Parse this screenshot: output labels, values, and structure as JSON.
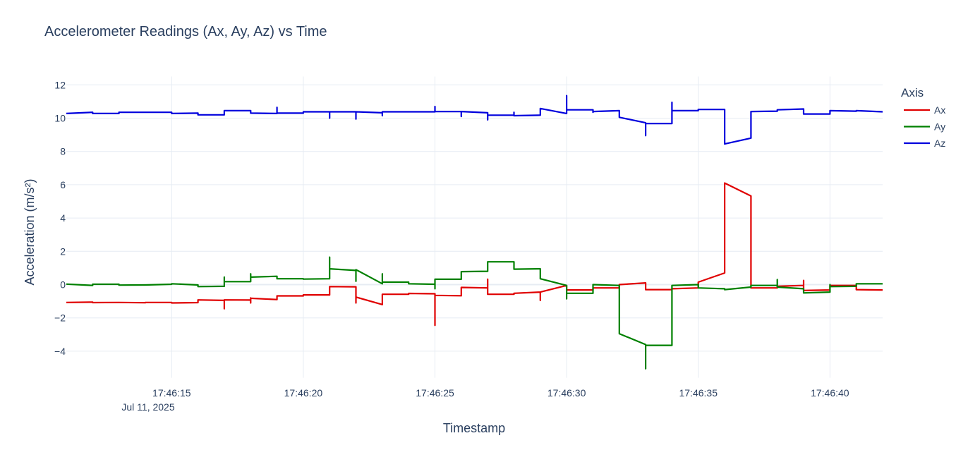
{
  "chart_data": {
    "type": "line",
    "title": "Accelerometer Readings (Ax, Ay, Az) vs Time",
    "xlabel": "Timestamp",
    "ylabel": "Acceleration (m/s²)",
    "legend_title": "Axis",
    "legend_position": "right",
    "grid": true,
    "xlim": [
      "2025-07-11 17:46:11",
      "2025-07-11 17:46:42"
    ],
    "ylim": [
      -5.6,
      12.5
    ],
    "x_ticks": [
      "17:46:15",
      "17:46:20",
      "17:46:25",
      "17:46:30",
      "17:46:35",
      "17:46:40"
    ],
    "x_tick_date": "Jul 11, 2025",
    "y_ticks": [
      "12",
      "10",
      "8",
      "6",
      "4",
      "2",
      "0",
      "−2",
      "−4"
    ],
    "y_tick_values": [
      12,
      10,
      8,
      6,
      4,
      2,
      0,
      -2,
      -4
    ],
    "series": [
      {
        "name": "Ax",
        "color": "#e00000",
        "points": [
          [
            "17:46:11",
            -1.07
          ],
          [
            "17:46:12",
            -1.05
          ],
          [
            "17:46:12",
            -1.08
          ],
          [
            "17:46:13",
            -1.07
          ],
          [
            "17:46:14",
            -1.09
          ],
          [
            "17:46:14",
            -1.07
          ],
          [
            "17:46:15",
            -1.07
          ],
          [
            "17:46:15",
            -1.1
          ],
          [
            "17:46:16",
            -1.08
          ],
          [
            "17:46:16",
            -0.92
          ],
          [
            "17:46:17",
            -0.95
          ],
          [
            "17:46:17",
            -1.45
          ],
          [
            "17:46:17",
            -0.92
          ],
          [
            "17:46:18",
            -0.93
          ],
          [
            "17:46:18",
            -0.8
          ],
          [
            "17:46:18",
            -1.1
          ],
          [
            "17:46:18",
            -0.82
          ],
          [
            "17:46:19",
            -0.9
          ],
          [
            "17:46:19",
            -0.68
          ],
          [
            "17:46:20",
            -0.68
          ],
          [
            "17:46:20",
            -0.62
          ],
          [
            "17:46:21",
            -0.62
          ],
          [
            "17:46:21",
            -0.12
          ],
          [
            "17:46:22",
            -0.13
          ],
          [
            "17:46:22",
            -1.1
          ],
          [
            "17:46:22",
            -0.75
          ],
          [
            "17:46:23",
            -1.2
          ],
          [
            "17:46:23",
            -0.58
          ],
          [
            "17:46:24",
            -0.58
          ],
          [
            "17:46:24",
            -0.53
          ],
          [
            "17:46:25",
            -0.55
          ],
          [
            "17:46:25",
            -2.45
          ],
          [
            "17:46:25",
            -0.65
          ],
          [
            "17:46:26",
            -0.67
          ],
          [
            "17:46:26",
            -0.17
          ],
          [
            "17:46:27",
            -0.2
          ],
          [
            "17:46:27",
            0.32
          ],
          [
            "17:46:27",
            -0.58
          ],
          [
            "17:46:28",
            -0.58
          ],
          [
            "17:46:28",
            -0.52
          ],
          [
            "17:46:29",
            -0.45
          ],
          [
            "17:46:29",
            -0.95
          ],
          [
            "17:46:29",
            -0.45
          ],
          [
            "17:46:30",
            -0.05
          ],
          [
            "17:46:30",
            -0.32
          ],
          [
            "17:46:31",
            -0.32
          ],
          [
            "17:46:31",
            -0.2
          ],
          [
            "17:46:32",
            -0.2
          ],
          [
            "17:46:32",
            0.0
          ],
          [
            "17:46:33",
            0.1
          ],
          [
            "17:46:33",
            -0.3
          ],
          [
            "17:46:34",
            -0.3
          ],
          [
            "17:46:34",
            -0.25
          ],
          [
            "17:46:35",
            -0.2
          ],
          [
            "17:46:35",
            0.15
          ],
          [
            "17:46:36",
            0.7
          ],
          [
            "17:46:36",
            6.1
          ],
          [
            "17:46:37",
            5.32
          ],
          [
            "17:46:37",
            -0.2
          ],
          [
            "17:46:38",
            -0.2
          ],
          [
            "17:46:38",
            -0.1
          ],
          [
            "17:46:39",
            -0.05
          ],
          [
            "17:46:39",
            0.25
          ],
          [
            "17:46:39",
            -0.35
          ],
          [
            "17:46:40",
            -0.32
          ],
          [
            "17:46:40",
            -0.05
          ],
          [
            "17:46:41",
            -0.05
          ],
          [
            "17:46:41",
            -0.3
          ],
          [
            "17:46:42",
            -0.32
          ]
        ]
      },
      {
        "name": "Ay",
        "color": "#008000",
        "points": [
          [
            "17:46:11",
            0.03
          ],
          [
            "17:46:12",
            -0.05
          ],
          [
            "17:46:12",
            0.02
          ],
          [
            "17:46:13",
            0.02
          ],
          [
            "17:46:13",
            -0.03
          ],
          [
            "17:46:14",
            -0.02
          ],
          [
            "17:46:15",
            0.02
          ],
          [
            "17:46:15",
            0.05
          ],
          [
            "17:46:16",
            -0.02
          ],
          [
            "17:46:16",
            -0.12
          ],
          [
            "17:46:17",
            -0.1
          ],
          [
            "17:46:17",
            0.45
          ],
          [
            "17:46:17",
            0.18
          ],
          [
            "17:46:18",
            0.18
          ],
          [
            "17:46:18",
            0.65
          ],
          [
            "17:46:18",
            0.45
          ],
          [
            "17:46:19",
            0.5
          ],
          [
            "17:46:19",
            0.35
          ],
          [
            "17:46:20",
            0.35
          ],
          [
            "17:46:20",
            0.33
          ],
          [
            "17:46:21",
            0.35
          ],
          [
            "17:46:21",
            1.65
          ],
          [
            "17:46:21",
            0.95
          ],
          [
            "17:46:22",
            0.85
          ],
          [
            "17:46:22",
            0.2
          ],
          [
            "17:46:22",
            0.9
          ],
          [
            "17:46:23",
            0.05
          ],
          [
            "17:46:23",
            0.65
          ],
          [
            "17:46:23",
            0.15
          ],
          [
            "17:46:24",
            0.15
          ],
          [
            "17:46:24",
            0.05
          ],
          [
            "17:46:25",
            0.02
          ],
          [
            "17:46:25",
            -0.25
          ],
          [
            "17:46:25",
            0.32
          ],
          [
            "17:46:26",
            0.32
          ],
          [
            "17:46:26",
            0.78
          ],
          [
            "17:46:27",
            0.8
          ],
          [
            "17:46:27",
            1.37
          ],
          [
            "17:46:28",
            1.37
          ],
          [
            "17:46:28",
            0.93
          ],
          [
            "17:46:29",
            0.95
          ],
          [
            "17:46:29",
            0.35
          ],
          [
            "17:46:30",
            -0.05
          ],
          [
            "17:46:30",
            -0.85
          ],
          [
            "17:46:30",
            -0.52
          ],
          [
            "17:46:31",
            -0.52
          ],
          [
            "17:46:31",
            0.0
          ],
          [
            "17:46:32",
            -0.05
          ],
          [
            "17:46:32",
            -2.95
          ],
          [
            "17:46:33",
            -3.6
          ],
          [
            "17:46:33",
            -5.05
          ],
          [
            "17:46:33",
            -3.65
          ],
          [
            "17:46:34",
            -3.65
          ],
          [
            "17:46:34",
            -0.05
          ],
          [
            "17:46:35",
            0.0
          ],
          [
            "17:46:35",
            -0.2
          ],
          [
            "17:46:36",
            -0.25
          ],
          [
            "17:46:36",
            -0.3
          ],
          [
            "17:46:37",
            -0.15
          ],
          [
            "17:46:37",
            -0.05
          ],
          [
            "17:46:38",
            -0.05
          ],
          [
            "17:46:38",
            0.3
          ],
          [
            "17:46:38",
            -0.15
          ],
          [
            "17:46:39",
            -0.25
          ],
          [
            "17:46:39",
            -0.5
          ],
          [
            "17:46:40",
            -0.45
          ],
          [
            "17:46:40",
            0.0
          ],
          [
            "17:46:40",
            -0.12
          ],
          [
            "17:46:41",
            -0.1
          ],
          [
            "17:46:41",
            0.05
          ],
          [
            "17:46:42",
            0.05
          ]
        ]
      },
      {
        "name": "Az",
        "color": "#0000dd",
        "points": [
          [
            "17:46:11",
            10.28
          ],
          [
            "17:46:12",
            10.35
          ],
          [
            "17:46:12",
            10.28
          ],
          [
            "17:46:13",
            10.28
          ],
          [
            "17:46:13",
            10.35
          ],
          [
            "17:46:14",
            10.35
          ],
          [
            "17:46:15",
            10.35
          ],
          [
            "17:46:15",
            10.28
          ],
          [
            "17:46:16",
            10.3
          ],
          [
            "17:46:16",
            10.2
          ],
          [
            "17:46:17",
            10.2
          ],
          [
            "17:46:17",
            10.45
          ],
          [
            "17:46:18",
            10.45
          ],
          [
            "17:46:18",
            10.3
          ],
          [
            "17:46:19",
            10.28
          ],
          [
            "17:46:19",
            10.65
          ],
          [
            "17:46:19",
            10.3
          ],
          [
            "17:46:20",
            10.3
          ],
          [
            "17:46:20",
            10.38
          ],
          [
            "17:46:21",
            10.38
          ],
          [
            "17:46:21",
            10.0
          ],
          [
            "17:46:21",
            10.38
          ],
          [
            "17:46:22",
            10.38
          ],
          [
            "17:46:22",
            9.95
          ],
          [
            "17:46:22",
            10.38
          ],
          [
            "17:46:23",
            10.32
          ],
          [
            "17:46:23",
            10.15
          ],
          [
            "17:46:23",
            10.38
          ],
          [
            "17:46:24",
            10.38
          ],
          [
            "17:46:25",
            10.38
          ],
          [
            "17:46:25",
            10.7
          ],
          [
            "17:46:25",
            10.4
          ],
          [
            "17:46:26",
            10.4
          ],
          [
            "17:46:26",
            10.1
          ],
          [
            "17:46:26",
            10.4
          ],
          [
            "17:46:27",
            10.32
          ],
          [
            "17:46:27",
            9.9
          ],
          [
            "17:46:27",
            10.18
          ],
          [
            "17:46:28",
            10.18
          ],
          [
            "17:46:28",
            10.35
          ],
          [
            "17:46:28",
            10.15
          ],
          [
            "17:46:29",
            10.18
          ],
          [
            "17:46:29",
            10.58
          ],
          [
            "17:46:30",
            10.28
          ],
          [
            "17:46:30",
            11.35
          ],
          [
            "17:46:30",
            10.5
          ],
          [
            "17:46:31",
            10.5
          ],
          [
            "17:46:31",
            10.35
          ],
          [
            "17:46:31",
            10.4
          ],
          [
            "17:46:32",
            10.45
          ],
          [
            "17:46:32",
            10.05
          ],
          [
            "17:46:33",
            9.72
          ],
          [
            "17:46:33",
            8.95
          ],
          [
            "17:46:33",
            9.68
          ],
          [
            "17:46:34",
            9.68
          ],
          [
            "17:46:34",
            10.95
          ],
          [
            "17:46:34",
            10.45
          ],
          [
            "17:46:35",
            10.45
          ],
          [
            "17:46:35",
            10.52
          ],
          [
            "17:46:36",
            10.52
          ],
          [
            "17:46:36",
            8.45
          ],
          [
            "17:46:37",
            8.8
          ],
          [
            "17:46:37",
            10.4
          ],
          [
            "17:46:38",
            10.42
          ],
          [
            "17:46:38",
            10.5
          ],
          [
            "17:46:39",
            10.55
          ],
          [
            "17:46:39",
            10.25
          ],
          [
            "17:46:40",
            10.25
          ],
          [
            "17:46:40",
            10.45
          ],
          [
            "17:46:41",
            10.42
          ],
          [
            "17:46:41",
            10.45
          ],
          [
            "17:46:42",
            10.38
          ]
        ]
      }
    ]
  }
}
